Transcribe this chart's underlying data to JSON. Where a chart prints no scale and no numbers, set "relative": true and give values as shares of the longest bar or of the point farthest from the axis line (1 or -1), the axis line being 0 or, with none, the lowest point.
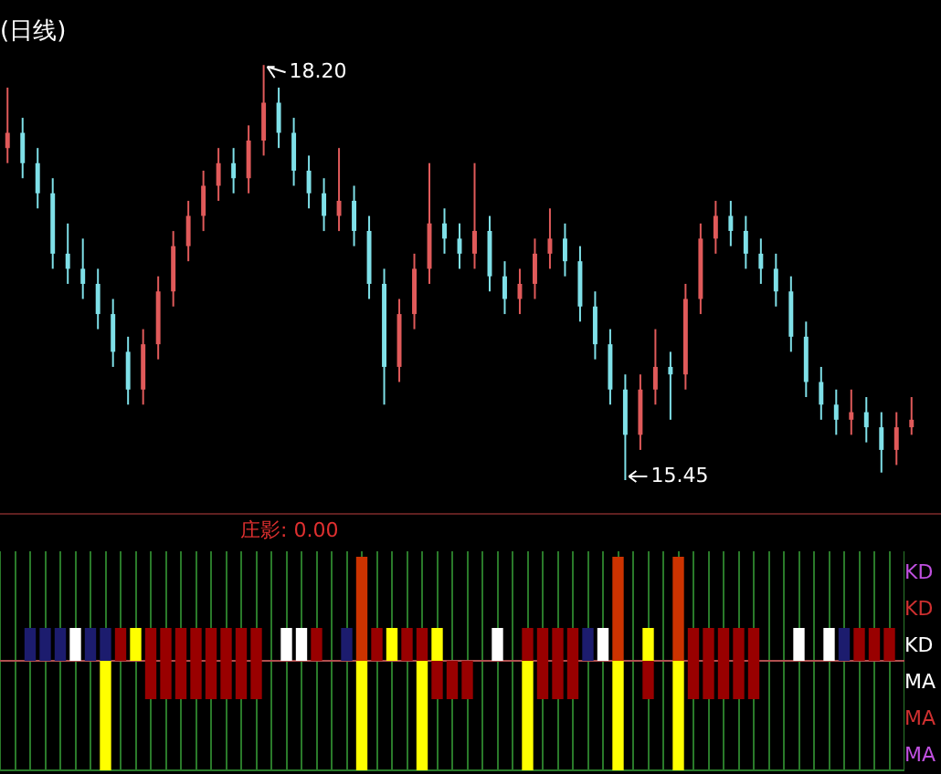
{
  "chart_data": [
    {
      "type": "candlestick",
      "title": "(日线)",
      "ohlc": [
        [
          17.65,
          18.05,
          17.55,
          17.75
        ],
        [
          17.75,
          17.85,
          17.45,
          17.55
        ],
        [
          17.55,
          17.65,
          17.25,
          17.35
        ],
        [
          17.35,
          17.45,
          16.85,
          16.95
        ],
        [
          16.95,
          17.15,
          16.75,
          16.85
        ],
        [
          16.85,
          17.05,
          16.65,
          16.75
        ],
        [
          16.75,
          16.85,
          16.45,
          16.55
        ],
        [
          16.55,
          16.65,
          16.2,
          16.3
        ],
        [
          16.3,
          16.4,
          15.95,
          16.05
        ],
        [
          16.05,
          16.45,
          15.95,
          16.35
        ],
        [
          16.35,
          16.8,
          16.25,
          16.7
        ],
        [
          16.7,
          17.1,
          16.6,
          17.0
        ],
        [
          17.0,
          17.3,
          16.9,
          17.2
        ],
        [
          17.2,
          17.5,
          17.1,
          17.4
        ],
        [
          17.4,
          17.65,
          17.3,
          17.55
        ],
        [
          17.55,
          17.65,
          17.35,
          17.45
        ],
        [
          17.45,
          17.8,
          17.35,
          17.7
        ],
        [
          17.7,
          18.2,
          17.6,
          17.95
        ],
        [
          17.95,
          18.05,
          17.65,
          17.75
        ],
        [
          17.75,
          17.85,
          17.4,
          17.5
        ],
        [
          17.5,
          17.6,
          17.25,
          17.35
        ],
        [
          17.35,
          17.45,
          17.1,
          17.2
        ],
        [
          17.2,
          17.65,
          17.1,
          17.3
        ],
        [
          17.3,
          17.4,
          17.0,
          17.1
        ],
        [
          17.1,
          17.2,
          16.65,
          16.75
        ],
        [
          16.75,
          16.85,
          15.95,
          16.2
        ],
        [
          16.2,
          16.65,
          16.1,
          16.55
        ],
        [
          16.55,
          16.95,
          16.45,
          16.85
        ],
        [
          16.85,
          17.55,
          16.75,
          17.15
        ],
        [
          17.15,
          17.25,
          16.95,
          17.05
        ],
        [
          17.05,
          17.15,
          16.85,
          16.95
        ],
        [
          16.95,
          17.55,
          16.85,
          17.1
        ],
        [
          17.1,
          17.2,
          16.7,
          16.8
        ],
        [
          16.8,
          16.9,
          16.55,
          16.65
        ],
        [
          16.65,
          16.85,
          16.55,
          16.75
        ],
        [
          16.75,
          17.05,
          16.65,
          16.95
        ],
        [
          16.95,
          17.25,
          16.85,
          17.05
        ],
        [
          17.05,
          17.15,
          16.8,
          16.9
        ],
        [
          16.9,
          17.0,
          16.5,
          16.6
        ],
        [
          16.6,
          16.7,
          16.25,
          16.35
        ],
        [
          16.35,
          16.45,
          15.95,
          16.05
        ],
        [
          16.05,
          16.15,
          15.45,
          15.75
        ],
        [
          15.75,
          16.15,
          15.65,
          16.05
        ],
        [
          16.05,
          16.45,
          15.95,
          16.2
        ],
        [
          16.2,
          16.3,
          15.85,
          16.15
        ],
        [
          16.15,
          16.75,
          16.05,
          16.65
        ],
        [
          16.65,
          17.15,
          16.55,
          17.05
        ],
        [
          17.05,
          17.3,
          16.95,
          17.2
        ],
        [
          17.2,
          17.3,
          17.0,
          17.1
        ],
        [
          17.1,
          17.2,
          16.85,
          16.95
        ],
        [
          16.95,
          17.05,
          16.75,
          16.85
        ],
        [
          16.85,
          16.95,
          16.6,
          16.7
        ],
        [
          16.7,
          16.8,
          16.3,
          16.4
        ],
        [
          16.4,
          16.5,
          16.0,
          16.1
        ],
        [
          16.1,
          16.2,
          15.85,
          15.95
        ],
        [
          15.95,
          16.05,
          15.75,
          15.85
        ],
        [
          15.85,
          16.05,
          15.75,
          15.9
        ],
        [
          15.9,
          16.0,
          15.7,
          15.8
        ],
        [
          15.8,
          15.9,
          15.5,
          15.65
        ],
        [
          15.65,
          15.9,
          15.55,
          15.8
        ],
        [
          15.8,
          16.0,
          15.75,
          15.85
        ]
      ],
      "colors": [
        "#e05a5a",
        "#7fe0e8",
        "#7fe0e8",
        "#7fe0e8",
        "#7fe0e8",
        "#7fe0e8",
        "#7fe0e8",
        "#7fe0e8",
        "#7fe0e8",
        "#e05a5a",
        "#e05a5a",
        "#e05a5a",
        "#e05a5a",
        "#e05a5a",
        "#e05a5a",
        "#7fe0e8",
        "#e05a5a",
        "#e05a5a",
        "#7fe0e8",
        "#7fe0e8",
        "#7fe0e8",
        "#7fe0e8",
        "#e05a5a",
        "#7fe0e8",
        "#7fe0e8",
        "#7fe0e8",
        "#e05a5a",
        "#e05a5a",
        "#e05a5a",
        "#7fe0e8",
        "#7fe0e8",
        "#e05a5a",
        "#7fe0e8",
        "#7fe0e8",
        "#e05a5a",
        "#e05a5a",
        "#e05a5a",
        "#7fe0e8",
        "#7fe0e8",
        "#7fe0e8",
        "#7fe0e8",
        "#7fe0e8",
        "#e05a5a",
        "#e05a5a",
        "#7fe0e8",
        "#e05a5a",
        "#e05a5a",
        "#e05a5a",
        "#7fe0e8",
        "#7fe0e8",
        "#7fe0e8",
        "#7fe0e8",
        "#7fe0e8",
        "#7fe0e8",
        "#7fe0e8",
        "#7fe0e8",
        "#e05a5a",
        "#7fe0e8",
        "#7fe0e8",
        "#e05a5a",
        "#e05a5a"
      ],
      "annotations": [
        "18.20",
        "15.45"
      ]
    },
    {
      "type": "bar",
      "relative": true,
      "grid": "x",
      "ref_lines": [
        {
          "axis": "y",
          "value": 0,
          "color": "#b05050"
        }
      ],
      "categories": [
        null,
        null,
        null,
        null,
        null,
        null,
        null,
        null,
        null,
        null,
        null,
        null,
        null,
        null,
        null,
        null,
        null,
        null,
        null,
        null,
        null,
        null,
        null,
        null,
        null,
        null,
        null,
        null,
        null,
        null,
        null,
        null,
        null,
        null,
        null,
        null,
        null,
        null,
        null,
        null,
        null,
        null,
        null,
        null,
        null,
        null,
        null,
        null,
        null,
        null,
        null,
        null,
        null,
        null,
        null,
        null,
        null,
        null,
        null,
        null,
        null
      ],
      "annotations": [
        "庄影: 0.00",
        "KD",
        "KD",
        "KD",
        "MA",
        "MA",
        "MA"
      ],
      "series": [
        {
          "color": "#990000",
          "values": [
            null,
            null,
            null,
            null,
            null,
            null,
            null,
            null,
            0.3,
            null,
            0.3,
            0.3,
            0.3,
            0.3,
            0.3,
            0.3,
            0.3,
            0.3,
            null,
            null,
            null,
            0.3,
            null,
            null,
            null,
            0.3,
            null,
            0.3,
            0.3,
            null,
            null,
            null,
            null,
            null,
            null,
            0.3,
            0.3,
            0.3,
            0.3,
            null,
            null,
            null,
            null,
            null,
            null,
            null,
            0.3,
            0.3,
            0.3,
            0.3,
            0.3,
            null,
            null,
            null,
            null,
            null,
            null,
            0.3,
            0.3,
            0.3,
            null
          ]
        },
        {
          "color": "#990000",
          "values": [
            null,
            null,
            null,
            null,
            null,
            null,
            null,
            null,
            null,
            null,
            -0.35,
            -0.35,
            -0.35,
            -0.35,
            -0.35,
            -0.35,
            -0.35,
            -0.35,
            null,
            null,
            null,
            null,
            null,
            null,
            null,
            null,
            null,
            null,
            null,
            -0.35,
            -0.35,
            -0.35,
            null,
            null,
            null,
            null,
            -0.35,
            -0.35,
            -0.35,
            null,
            null,
            null,
            null,
            -0.35,
            null,
            null,
            -0.35,
            -0.35,
            -0.35,
            -0.35,
            -0.35,
            null,
            null,
            null,
            null,
            null,
            null,
            null,
            null,
            null,
            null
          ]
        },
        {
          "color": "#1c1c6e",
          "values": [
            null,
            null,
            0.3,
            0.3,
            0.3,
            null,
            0.3,
            0.3,
            null,
            null,
            null,
            null,
            null,
            null,
            null,
            null,
            null,
            null,
            null,
            null,
            null,
            null,
            null,
            0.3,
            null,
            null,
            null,
            null,
            null,
            null,
            null,
            null,
            null,
            null,
            null,
            null,
            null,
            null,
            null,
            0.3,
            null,
            null,
            null,
            null,
            null,
            null,
            null,
            null,
            null,
            null,
            null,
            null,
            null,
            null,
            null,
            null,
            0.3,
            null,
            null,
            null,
            null
          ]
        },
        {
          "color": "#ffffff",
          "values": [
            null,
            null,
            null,
            null,
            null,
            0.3,
            null,
            null,
            null,
            null,
            null,
            null,
            null,
            null,
            null,
            null,
            null,
            null,
            null,
            0.3,
            0.3,
            null,
            null,
            null,
            null,
            null,
            null,
            null,
            null,
            null,
            null,
            null,
            null,
            0.3,
            null,
            null,
            null,
            null,
            null,
            null,
            0.3,
            null,
            null,
            null,
            null,
            null,
            null,
            null,
            null,
            null,
            null,
            null,
            null,
            0.3,
            null,
            0.3,
            null,
            null,
            null,
            null,
            null
          ]
        },
        {
          "color": "#ffff00",
          "values": [
            null,
            null,
            null,
            null,
            null,
            null,
            null,
            null,
            null,
            0.3,
            null,
            null,
            null,
            null,
            null,
            null,
            null,
            null,
            null,
            null,
            null,
            null,
            null,
            null,
            null,
            null,
            0.3,
            null,
            null,
            0.3,
            null,
            null,
            null,
            null,
            null,
            null,
            null,
            null,
            null,
            null,
            null,
            null,
            null,
            0.3,
            null,
            null,
            null,
            null,
            null,
            null,
            null,
            null,
            null,
            null,
            null,
            null,
            null,
            null,
            null,
            null,
            null
          ]
        },
        {
          "color": "#ffff00",
          "values": [
            null,
            null,
            null,
            null,
            null,
            null,
            null,
            -1,
            null,
            null,
            null,
            null,
            null,
            null,
            null,
            null,
            null,
            null,
            null,
            null,
            null,
            null,
            null,
            null,
            -1,
            null,
            null,
            null,
            -1,
            null,
            null,
            null,
            null,
            null,
            null,
            -1,
            null,
            null,
            null,
            null,
            null,
            -1,
            null,
            null,
            null,
            -1,
            null,
            null,
            null,
            null,
            null,
            null,
            null,
            null,
            null,
            null,
            null,
            null,
            null,
            null,
            null
          ]
        },
        {
          "color": "#cc3300",
          "values": [
            null,
            null,
            null,
            null,
            null,
            null,
            null,
            null,
            null,
            null,
            null,
            null,
            null,
            null,
            null,
            null,
            null,
            null,
            null,
            null,
            null,
            null,
            null,
            null,
            0.95,
            null,
            null,
            null,
            null,
            null,
            null,
            null,
            null,
            null,
            null,
            null,
            null,
            null,
            null,
            null,
            null,
            0.95,
            null,
            null,
            null,
            0.95,
            null,
            null,
            null,
            null,
            null,
            null,
            null,
            null,
            null,
            null,
            null,
            null,
            null,
            null,
            null
          ]
        }
      ]
    }
  ]
}
